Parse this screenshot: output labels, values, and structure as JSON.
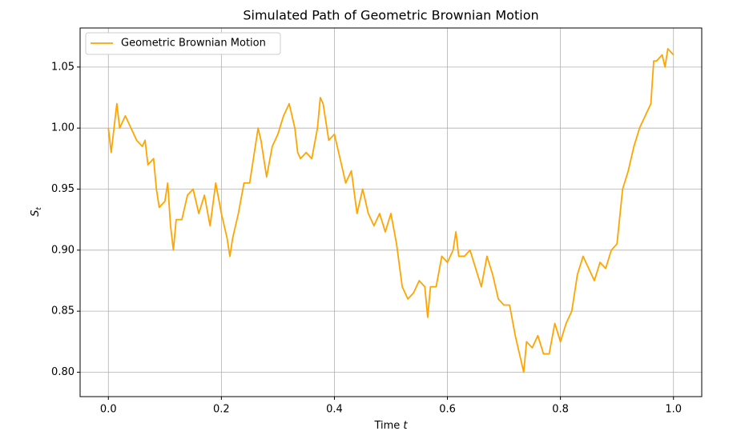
{
  "chart_data": {
    "type": "line",
    "title": "Simulated Path of Geometric Brownian Motion",
    "xlabel": "Time",
    "xlabel_var": "t",
    "ylabel": "S",
    "ylabel_sub": "t",
    "x": [
      0,
      0.005,
      0.01,
      0.015,
      0.02,
      0.03,
      0.04,
      0.05,
      0.06,
      0.065,
      0.07,
      0.08,
      0.085,
      0.09,
      0.1,
      0.105,
      0.11,
      0.115,
      0.12,
      0.13,
      0.14,
      0.15,
      0.16,
      0.17,
      0.18,
      0.19,
      0.2,
      0.21,
      0.215,
      0.22,
      0.23,
      0.24,
      0.25,
      0.26,
      0.265,
      0.27,
      0.28,
      0.29,
      0.3,
      0.31,
      0.32,
      0.33,
      0.335,
      0.34,
      0.35,
      0.36,
      0.37,
      0.375,
      0.38,
      0.39,
      0.4,
      0.41,
      0.42,
      0.43,
      0.44,
      0.45,
      0.46,
      0.47,
      0.48,
      0.49,
      0.5,
      0.51,
      0.52,
      0.53,
      0.54,
      0.55,
      0.56,
      0.565,
      0.57,
      0.58,
      0.59,
      0.6,
      0.61,
      0.615,
      0.62,
      0.63,
      0.64,
      0.65,
      0.66,
      0.67,
      0.68,
      0.69,
      0.7,
      0.71,
      0.72,
      0.73,
      0.735,
      0.74,
      0.75,
      0.76,
      0.77,
      0.78,
      0.79,
      0.8,
      0.81,
      0.82,
      0.83,
      0.84,
      0.85,
      0.86,
      0.87,
      0.88,
      0.89,
      0.9,
      0.91,
      0.92,
      0.93,
      0.94,
      0.95,
      0.96,
      0.965,
      0.97,
      0.98,
      0.985,
      0.99,
      1.0
    ],
    "series": [
      {
        "name": "Geometric Brownian Motion",
        "color": "#ffa500",
        "values": [
          1.0,
          0.98,
          1.0,
          1.02,
          1.0,
          1.01,
          1.0,
          0.99,
          0.985,
          0.99,
          0.97,
          0.975,
          0.95,
          0.935,
          0.94,
          0.955,
          0.92,
          0.9,
          0.925,
          0.925,
          0.945,
          0.95,
          0.93,
          0.945,
          0.92,
          0.955,
          0.93,
          0.91,
          0.895,
          0.91,
          0.93,
          0.955,
          0.955,
          0.985,
          1.0,
          0.99,
          0.96,
          0.985,
          0.995,
          1.01,
          1.02,
          1.0,
          0.98,
          0.975,
          0.98,
          0.975,
          1.0,
          1.025,
          1.02,
          0.99,
          0.995,
          0.975,
          0.955,
          0.965,
          0.93,
          0.95,
          0.93,
          0.92,
          0.93,
          0.915,
          0.93,
          0.905,
          0.87,
          0.86,
          0.865,
          0.875,
          0.87,
          0.845,
          0.87,
          0.87,
          0.895,
          0.89,
          0.9,
          0.915,
          0.895,
          0.895,
          0.9,
          0.885,
          0.87,
          0.895,
          0.88,
          0.86,
          0.855,
          0.855,
          0.83,
          0.81,
          0.8,
          0.825,
          0.82,
          0.83,
          0.815,
          0.815,
          0.84,
          0.825,
          0.84,
          0.85,
          0.88,
          0.895,
          0.885,
          0.875,
          0.89,
          0.885,
          0.9,
          0.905,
          0.95,
          0.965,
          0.985,
          1.0,
          1.01,
          1.02,
          1.055,
          1.055,
          1.06,
          1.05,
          1.065,
          1.06
        ]
      }
    ],
    "xlim": [
      -0.05,
      1.05
    ],
    "xticks": [
      {
        "value": 0,
        "label": "0.0"
      },
      0.2,
      0.4,
      0.6,
      0.8,
      {
        "value": 1,
        "label": "1.0"
      }
    ],
    "ylim": [
      0.78,
      1.082
    ],
    "yticks": [
      {
        "value": 0.8,
        "label": "0.80"
      },
      0.85,
      {
        "value": 0.9,
        "label": "0.90"
      },
      0.95,
      {
        "value": 1,
        "label": "1.00"
      },
      1.05
    ],
    "grid": true,
    "legend": "upper-left"
  }
}
